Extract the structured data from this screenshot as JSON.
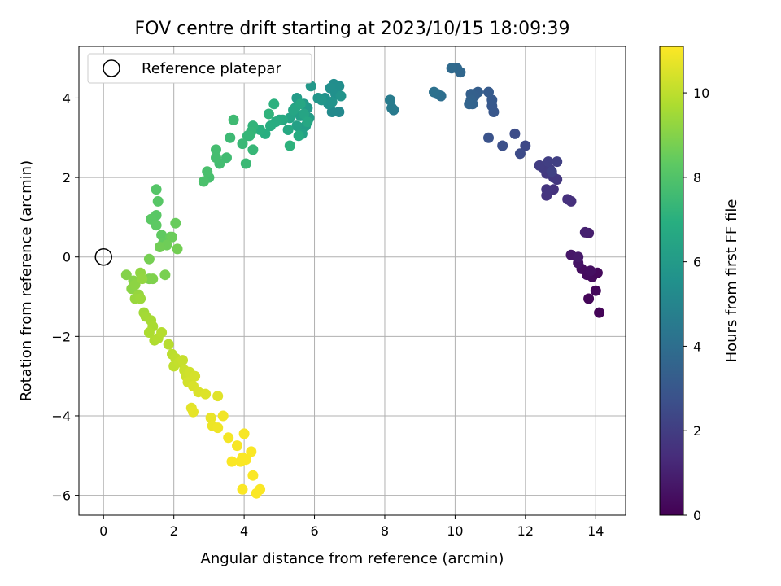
{
  "chart_data": {
    "type": "scatter",
    "title": "FOV centre drift starting at 2023/10/15 18:09:39",
    "xlabel": "Angular distance from reference (arcmin)",
    "ylabel": "Rotation from reference (arcmin)",
    "xlim": [
      -0.7,
      14.85
    ],
    "ylim": [
      -6.5,
      5.3
    ],
    "xticks": [
      0,
      2,
      4,
      6,
      8,
      10,
      12,
      14
    ],
    "yticks": [
      -6,
      -4,
      -2,
      0,
      2,
      4
    ],
    "grid": true,
    "legend": {
      "placement": "upper-left",
      "entries": [
        "Reference platepar"
      ]
    },
    "reference_point": {
      "x": 0,
      "y": 0
    },
    "colorbar": {
      "label": "Hours from first FF file",
      "colormap": "viridis",
      "range": [
        0,
        11.1
      ],
      "ticks": [
        0,
        2,
        4,
        6,
        8,
        10
      ]
    },
    "series": [
      {
        "color_by": "hours",
        "points": [
          [
            14.1,
            -1.4,
            0.1
          ],
          [
            13.8,
            -1.05,
            0.15
          ],
          [
            14.0,
            -0.85,
            0.2
          ],
          [
            13.9,
            -0.5,
            0.3
          ],
          [
            14.05,
            -0.4,
            0.25
          ],
          [
            13.75,
            -0.45,
            0.35
          ],
          [
            13.6,
            -0.3,
            0.4
          ],
          [
            13.85,
            -0.35,
            0.45
          ],
          [
            13.5,
            -0.15,
            0.6
          ],
          [
            13.3,
            0.05,
            0.7
          ],
          [
            13.5,
            0.0,
            0.8
          ],
          [
            13.8,
            0.6,
            0.9
          ],
          [
            13.7,
            0.62,
            1.0
          ],
          [
            13.3,
            1.4,
            1.5
          ],
          [
            13.2,
            1.45,
            1.55
          ],
          [
            12.8,
            1.7,
            1.6
          ],
          [
            12.6,
            1.55,
            1.65
          ],
          [
            12.6,
            1.7,
            1.7
          ],
          [
            12.9,
            1.95,
            1.75
          ],
          [
            12.8,
            2.0,
            1.8
          ],
          [
            12.6,
            2.1,
            1.85
          ],
          [
            12.7,
            2.2,
            1.9
          ],
          [
            12.5,
            2.25,
            1.95
          ],
          [
            12.4,
            2.3,
            2.0
          ],
          [
            12.65,
            2.4,
            2.05
          ],
          [
            12.9,
            2.4,
            2.1
          ],
          [
            12.75,
            2.15,
            2.15
          ],
          [
            12.0,
            2.8,
            2.4
          ],
          [
            11.85,
            2.6,
            2.5
          ],
          [
            11.7,
            3.1,
            2.6
          ],
          [
            11.35,
            2.8,
            2.7
          ],
          [
            10.95,
            3.0,
            2.8
          ],
          [
            11.1,
            3.65,
            3.0
          ],
          [
            11.05,
            3.8,
            3.05
          ],
          [
            11.05,
            3.95,
            3.1
          ],
          [
            10.95,
            4.15,
            3.15
          ],
          [
            10.65,
            4.15,
            3.3
          ],
          [
            10.55,
            4.05,
            3.35
          ],
          [
            10.45,
            4.1,
            3.4
          ],
          [
            10.45,
            3.95,
            3.45
          ],
          [
            10.5,
            3.85,
            3.5
          ],
          [
            10.4,
            3.85,
            3.55
          ],
          [
            10.15,
            4.65,
            3.7
          ],
          [
            10.05,
            4.75,
            3.75
          ],
          [
            9.9,
            4.75,
            3.8
          ],
          [
            9.6,
            4.05,
            4.0
          ],
          [
            9.5,
            4.1,
            4.05
          ],
          [
            9.4,
            4.15,
            4.1
          ],
          [
            8.25,
            3.7,
            4.5
          ],
          [
            8.2,
            3.75,
            4.55
          ],
          [
            8.15,
            3.95,
            4.6
          ],
          [
            6.7,
            3.65,
            5.2
          ],
          [
            6.5,
            3.65,
            5.25
          ],
          [
            6.6,
            4.2,
            5.3
          ],
          [
            6.55,
            4.35,
            5.35
          ],
          [
            6.7,
            4.3,
            5.4
          ],
          [
            6.45,
            4.25,
            5.45
          ],
          [
            6.6,
            4.1,
            5.5
          ],
          [
            6.3,
            4.0,
            5.55
          ],
          [
            6.4,
            3.85,
            5.6
          ],
          [
            6.5,
            3.9,
            5.65
          ],
          [
            6.75,
            4.05,
            5.7
          ],
          [
            6.1,
            4.0,
            5.75
          ],
          [
            6.2,
            3.95,
            5.8
          ],
          [
            5.9,
            4.3,
            5.9
          ],
          [
            5.8,
            3.75,
            5.95
          ],
          [
            5.7,
            3.85,
            6.0
          ],
          [
            5.5,
            4.0,
            6.05
          ],
          [
            5.85,
            3.5,
            6.1
          ],
          [
            5.75,
            3.3,
            6.15
          ],
          [
            5.6,
            3.55,
            6.2
          ],
          [
            5.5,
            3.3,
            6.25
          ],
          [
            5.65,
            3.1,
            6.3
          ],
          [
            5.45,
            3.75,
            6.35
          ],
          [
            5.3,
            3.5,
            6.4
          ],
          [
            5.7,
            3.6,
            6.45
          ],
          [
            5.4,
            3.7,
            6.5
          ],
          [
            5.6,
            3.85,
            6.55
          ],
          [
            5.8,
            3.4,
            6.6
          ],
          [
            5.25,
            3.2,
            6.65
          ],
          [
            5.1,
            3.45,
            6.7
          ],
          [
            5.0,
            3.45,
            6.75
          ],
          [
            5.55,
            3.05,
            6.8
          ],
          [
            4.9,
            3.4,
            6.85
          ],
          [
            4.75,
            3.3,
            6.9
          ],
          [
            4.6,
            3.1,
            6.95
          ],
          [
            4.45,
            3.2,
            7.0
          ],
          [
            4.85,
            3.85,
            7.05
          ],
          [
            5.3,
            2.8,
            7.1
          ],
          [
            4.7,
            3.6,
            7.15
          ],
          [
            4.25,
            3.3,
            7.2
          ],
          [
            4.2,
            3.15,
            7.25
          ],
          [
            4.15,
            3.05,
            7.3
          ],
          [
            4.1,
            3.05,
            7.3
          ],
          [
            4.25,
            2.7,
            7.35
          ],
          [
            3.95,
            2.85,
            7.4
          ],
          [
            4.05,
            2.35,
            7.45
          ],
          [
            3.6,
            3.0,
            7.5
          ],
          [
            3.7,
            3.45,
            7.55
          ],
          [
            3.5,
            2.5,
            7.6
          ],
          [
            3.3,
            2.35,
            7.65
          ],
          [
            3.2,
            2.5,
            7.7
          ],
          [
            3.2,
            2.7,
            7.7
          ],
          [
            3.0,
            2.0,
            7.75
          ],
          [
            2.95,
            2.15,
            7.8
          ],
          [
            2.85,
            1.9,
            7.85
          ],
          [
            1.5,
            1.7,
            8.1
          ],
          [
            1.55,
            1.4,
            8.15
          ],
          [
            1.5,
            1.05,
            8.2
          ],
          [
            1.35,
            0.95,
            8.25
          ],
          [
            1.5,
            0.8,
            8.3
          ],
          [
            1.65,
            0.55,
            8.35
          ],
          [
            1.7,
            0.35,
            8.4
          ],
          [
            1.9,
            0.5,
            8.45
          ],
          [
            2.05,
            0.85,
            8.5
          ],
          [
            1.95,
            0.5,
            8.55
          ],
          [
            1.8,
            0.3,
            8.6
          ],
          [
            1.6,
            0.25,
            8.65
          ],
          [
            2.1,
            0.2,
            8.7
          ],
          [
            1.3,
            -0.05,
            8.75
          ],
          [
            1.75,
            -0.45,
            8.8
          ],
          [
            1.3,
            -0.55,
            8.85
          ],
          [
            1.4,
            -0.55,
            8.9
          ],
          [
            0.65,
            -0.45,
            9.0
          ],
          [
            0.85,
            -0.6,
            9.05
          ],
          [
            0.8,
            -0.8,
            9.1
          ],
          [
            0.9,
            -0.7,
            9.15
          ],
          [
            1.05,
            -0.4,
            9.2
          ],
          [
            1.1,
            -0.55,
            9.25
          ],
          [
            1.0,
            -0.95,
            9.3
          ],
          [
            0.9,
            -1.05,
            9.35
          ],
          [
            1.05,
            -1.05,
            9.4
          ],
          [
            1.15,
            -1.4,
            9.5
          ],
          [
            1.2,
            -1.5,
            9.55
          ],
          [
            1.35,
            -1.6,
            9.6
          ],
          [
            1.4,
            -1.75,
            9.65
          ],
          [
            1.3,
            -1.9,
            9.7
          ],
          [
            1.45,
            -2.1,
            9.75
          ],
          [
            1.55,
            -2.05,
            9.8
          ],
          [
            1.65,
            -1.9,
            9.85
          ],
          [
            1.85,
            -2.2,
            9.9
          ],
          [
            1.95,
            -2.45,
            9.95
          ],
          [
            2.05,
            -2.55,
            10.0
          ],
          [
            2.0,
            -2.75,
            10.05
          ],
          [
            2.15,
            -2.65,
            10.1
          ],
          [
            2.25,
            -2.6,
            10.15
          ],
          [
            2.3,
            -2.85,
            10.2
          ],
          [
            2.35,
            -3.0,
            10.25
          ],
          [
            2.45,
            -2.9,
            10.3
          ],
          [
            2.4,
            -3.15,
            10.35
          ],
          [
            2.6,
            -3.0,
            10.4
          ],
          [
            2.55,
            -3.25,
            10.45
          ],
          [
            2.7,
            -3.4,
            10.5
          ],
          [
            2.9,
            -3.45,
            10.55
          ],
          [
            3.25,
            -3.5,
            10.6
          ],
          [
            2.5,
            -3.8,
            10.65
          ],
          [
            2.55,
            -3.9,
            10.7
          ],
          [
            3.05,
            -4.05,
            10.75
          ],
          [
            3.1,
            -4.25,
            10.8
          ],
          [
            3.25,
            -4.3,
            10.85
          ],
          [
            3.4,
            -4.0,
            10.9
          ],
          [
            3.55,
            -4.55,
            10.95
          ],
          [
            3.8,
            -4.75,
            11.0
          ],
          [
            4.0,
            -4.45,
            11.0
          ],
          [
            4.2,
            -4.9,
            11.05
          ],
          [
            3.9,
            -5.15,
            11.05
          ],
          [
            3.95,
            -5.05,
            11.05
          ],
          [
            4.05,
            -5.1,
            11.05
          ],
          [
            3.65,
            -5.15,
            11.05
          ],
          [
            4.25,
            -5.5,
            11.05
          ],
          [
            4.45,
            -5.85,
            11.05
          ],
          [
            4.35,
            -5.95,
            11.05
          ],
          [
            3.95,
            -5.85,
            11.05
          ]
        ]
      }
    ]
  }
}
